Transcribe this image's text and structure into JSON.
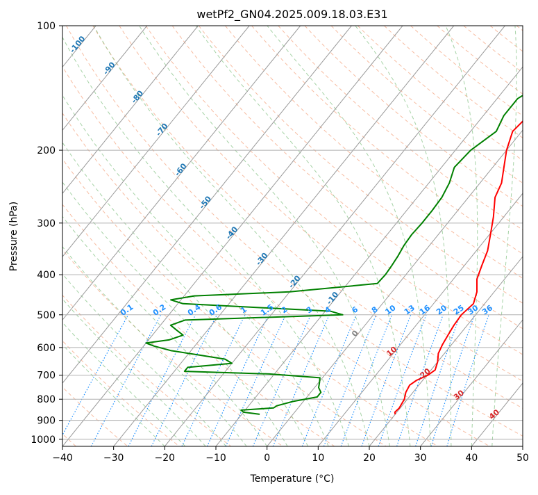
{
  "chart_data": {
    "type": "skew-t log-p sounding",
    "title": "wetPf2_GN04.2025.009.18.03.E31",
    "xlabel": "Temperature (°C)",
    "ylabel": "Pressure (hPa)",
    "xlim": [
      -40,
      50
    ],
    "ylim": [
      1040,
      100
    ],
    "y_scale": "log",
    "grid": true,
    "x_ticks": [
      "−40",
      "−30",
      "−20",
      "−10",
      "0",
      "10",
      "20",
      "30",
      "40",
      "50"
    ],
    "x_tick_values": [
      -40,
      -30,
      -20,
      -10,
      0,
      10,
      20,
      30,
      40,
      50
    ],
    "y_ticks": [
      "100",
      "200",
      "300",
      "400",
      "500",
      "600",
      "700",
      "800",
      "900",
      "1000"
    ],
    "y_tick_values": [
      100,
      200,
      300,
      400,
      500,
      600,
      700,
      800,
      900,
      1000
    ],
    "temperature_color": "#ff0000",
    "dewpoint_color": "#008000",
    "mixing_ratio_color": "#1e90ff",
    "isotherm_label_color": "#1f77b4",
    "wet_adiabat_label_color": "#d62728",
    "temperature": {
      "p": [
        870,
        860,
        840,
        800,
        770,
        740,
        720,
        700,
        680,
        650,
        620,
        590,
        560,
        530,
        500,
        470,
        440,
        410,
        380,
        350,
        320,
        290,
        260,
        240,
        220,
        200,
        180,
        165,
        150,
        140,
        130,
        120,
        110,
        100
      ],
      "t": [
        20.0,
        19.6,
        19.8,
        19.4,
        18.6,
        18.2,
        18.8,
        20.2,
        20.8,
        20.0,
        18.8,
        18.2,
        17.8,
        17.4,
        17.2,
        17.8,
        16.6,
        14.6,
        13.4,
        12.2,
        10.2,
        8.0,
        5.2,
        4.2,
        2.2,
        0.0,
        -1.8,
        -1.2,
        0.8,
        3.0,
        3.6,
        4.0,
        4.6,
        7.0
      ]
    },
    "dewpoint": {
      "p": [
        870,
        860,
        850,
        840,
        830,
        810,
        790,
        770,
        750,
        730,
        710,
        695,
        685,
        670,
        655,
        640,
        625,
        610,
        595,
        585,
        575,
        560,
        545,
        530,
        515,
        500,
        490,
        480,
        470,
        460,
        450,
        440,
        420,
        400,
        380,
        360,
        340,
        320,
        300,
        280,
        260,
        240,
        220,
        200,
        180,
        165,
        150,
        140,
        130,
        120,
        110,
        100
      ],
      "td": [
        -6.5,
        -10.0,
        -10.8,
        -4.8,
        -4.5,
        -2.0,
        2.0,
        2.0,
        0.8,
        0.2,
        -0.5,
        -11.0,
        -28.0,
        -28.0,
        -20.0,
        -22.0,
        -28.0,
        -34.0,
        -38.0,
        -40.0,
        -36.0,
        -34.0,
        -36.0,
        -38.0,
        -36.0,
        -6.0,
        -9.0,
        -24.0,
        -39.0,
        -42.0,
        -38.0,
        -20.0,
        -4.2,
        -4.0,
        -4.2,
        -4.5,
        -5.0,
        -5.2,
        -5.0,
        -5.0,
        -5.2,
        -6.0,
        -7.5,
        -7.0,
        -5.0,
        -6.0,
        -6.0,
        -4.0,
        -2.0,
        0.0,
        2.0,
        5.0
      ]
    },
    "isotherm_labels": [
      "-100",
      "-90",
      "-80",
      "-70",
      "-60",
      "-50",
      "-40",
      "-30",
      "-20",
      "-10",
      "0"
    ],
    "mixing_ratio_labels": [
      "0.1",
      "0.2",
      "0.4",
      "0.6",
      "1",
      "1.5",
      "2",
      "3",
      "4",
      "6",
      "8",
      "10",
      "13",
      "16",
      "20",
      "25",
      "30",
      "36"
    ],
    "wet_adiabat_labels": [
      "10",
      "20",
      "30",
      "40"
    ]
  }
}
